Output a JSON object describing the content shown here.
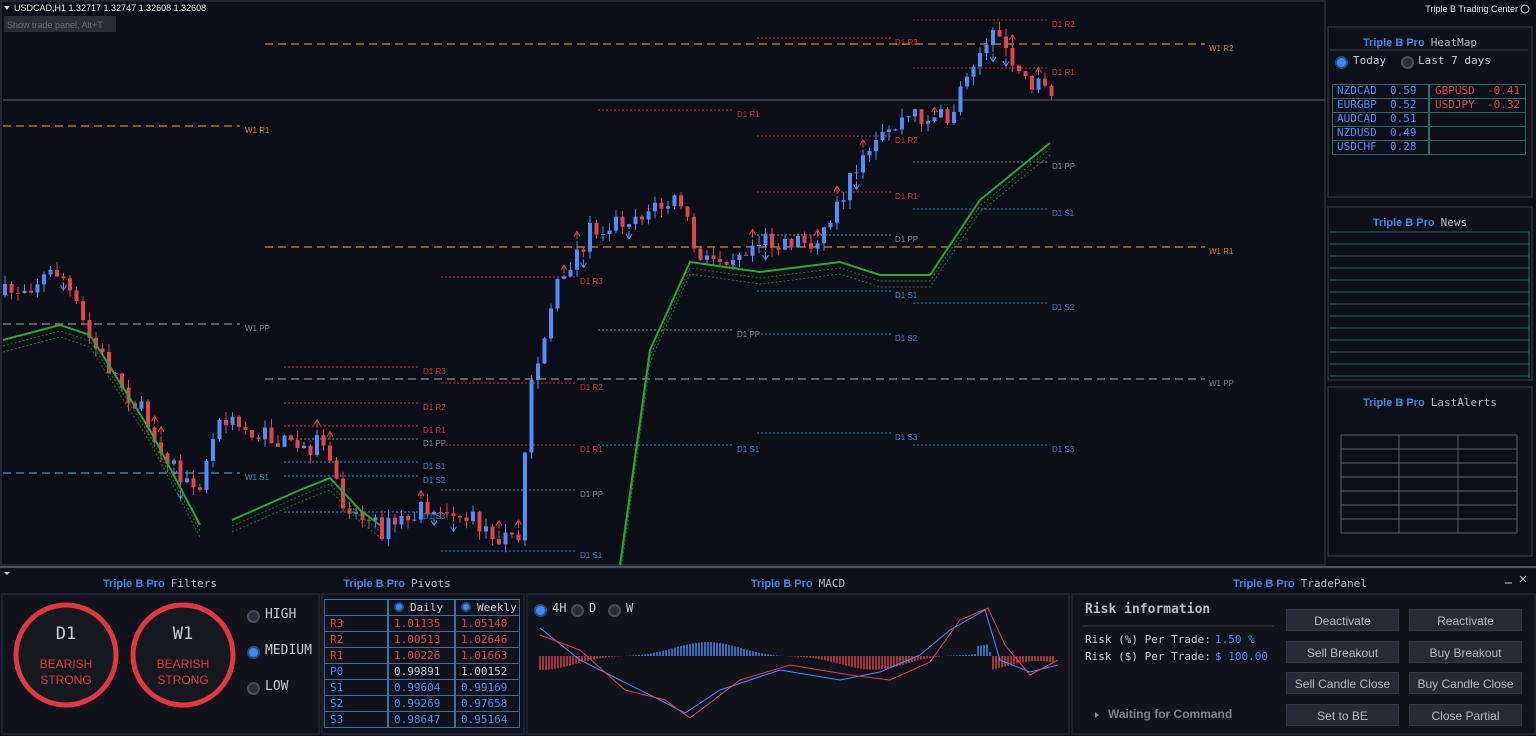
{
  "header": {
    "symbol_line": "USDCAD,H1  1.32717 1.32747 1.32608 1.32608",
    "hint": "Show trade panel, Alt+T",
    "app_title": "Triple B Trading Center"
  },
  "chart": {
    "level_labels": [
      "D1 R2",
      "D1 R3",
      "W1 R2",
      "D1 R1",
      "D1 R1",
      "W1 R1",
      "D1 R2",
      "D1 PP",
      "D1 R1",
      "D1 S1",
      "D1 PP",
      "W1 R1",
      "D1 R3",
      "D1 S1",
      "D1 S2",
      "W1 PP",
      "D1 PP",
      "D1 S2",
      "D1 R3",
      "W1 PP",
      "D1 R2",
      "D1 R2",
      "D1 R1",
      "D1 S3",
      "D1 PP",
      "D1 R1",
      "D1 S1",
      "D1 S3",
      "D1 S1",
      "W1 S1",
      "D1 S2",
      "D1 PP",
      "D1 S3",
      "D1 S1"
    ]
  },
  "heatmap": {
    "brand": "Triple B Pro",
    "title": "HeatMap",
    "options": [
      "Today",
      "Last 7 days"
    ],
    "positive": [
      {
        "pair": "NZDCAD",
        "value": "0.59"
      },
      {
        "pair": "EURGBP",
        "value": "0.52"
      },
      {
        "pair": "AUDCAD",
        "value": "0.51"
      },
      {
        "pair": "NZDUSD",
        "value": "0.49"
      },
      {
        "pair": "USDCHF",
        "value": "0.28"
      }
    ],
    "negative": [
      {
        "pair": "GBPUSD",
        "value": "-0.41"
      },
      {
        "pair": "USDJPY",
        "value": "-0.32"
      }
    ]
  },
  "news": {
    "brand": "Triple B Pro",
    "title": "News"
  },
  "alerts": {
    "brand": "Triple B Pro",
    "title": "LastAlerts"
  },
  "filters": {
    "brand": "Triple B Pro",
    "title": "Filters",
    "gauges": [
      {
        "timeframe": "D1",
        "signal": "BEARISH",
        "strength": "STRONG"
      },
      {
        "timeframe": "W1",
        "signal": "BEARISH",
        "strength": "STRONG"
      }
    ],
    "levels": [
      "HIGH",
      "MEDIUM",
      "LOW"
    ]
  },
  "pivots": {
    "brand": "Triple B Pro",
    "title": "Pivots",
    "columns": [
      "Daily",
      "Weekly"
    ],
    "rows": [
      [
        "R3",
        "1.01135",
        "1.05140"
      ],
      [
        "R2",
        "1.00513",
        "1.02646"
      ],
      [
        "R1",
        "1.00226",
        "1.01663"
      ],
      [
        "P0",
        "0.99891",
        "1.00152"
      ],
      [
        "S1",
        "0.99604",
        "0.99169"
      ],
      [
        "S2",
        "0.99269",
        "0.97658"
      ],
      [
        "S3",
        "0.98647",
        "0.95164"
      ]
    ]
  },
  "macd": {
    "brand": "Triple B Pro",
    "title": "MACD",
    "timeframes": [
      "4H",
      "D",
      "W"
    ]
  },
  "trade_panel": {
    "brand": "Triple B Pro",
    "title": "TradePanel",
    "risk_title": "Risk information",
    "risk_rows": [
      {
        "label": "Risk (%) Per Trade:",
        "value": "1.50 %"
      },
      {
        "label": "Risk ($) Per Trade:",
        "value": "$ 100.00"
      }
    ],
    "status": "Waiting for Command",
    "buttons": [
      "Deactivate",
      "Reactivate",
      "Sell Breakout",
      "Buy Breakout",
      "Sell Candle Close",
      "Buy Candle Close",
      "Set to BE",
      "Close Partial"
    ]
  }
}
